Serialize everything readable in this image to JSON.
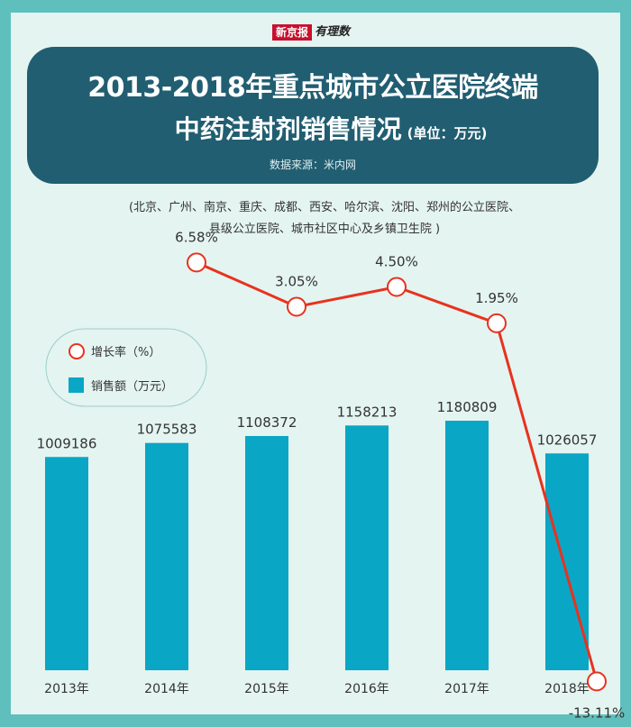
{
  "brand": {
    "left": "新京报",
    "right": "有理数"
  },
  "header": {
    "title_line1": "2013-2018年重点城市公立医院终端",
    "title_line2": "中药注射剂销售情况",
    "unit": "(单位：万元)",
    "source": "数据来源：米内网"
  },
  "subtitle": {
    "line1": "(北京、广州、南京、重庆、成都、西安、哈尔滨、沈阳、郑州的公立医院、",
    "line2": "县级公立医院、城市社区中心及乡镇卫生院 )"
  },
  "colors": {
    "background": "#5fbfbd",
    "panel": "#e4f4f0",
    "title_box": "#215e71",
    "bar": "#0aa6c6",
    "line": "#e8321e",
    "marker_fill": "#ffffff"
  },
  "chart_data": {
    "type": "bar",
    "categories": [
      "2013年",
      "2014年",
      "2015年",
      "2016年",
      "2017年",
      "2018年"
    ],
    "series": [
      {
        "name": "销售额（万元）",
        "type": "bar",
        "values": [
          1009186,
          1075583,
          1108372,
          1158213,
          1180809,
          1026057
        ],
        "labels": [
          "1009186",
          "1075583",
          "1108372",
          "1158213",
          "1180809",
          "1026057"
        ]
      },
      {
        "name": "增长率（%）",
        "type": "line",
        "values": [
          null,
          6.58,
          3.05,
          4.5,
          1.95,
          -13.11
        ],
        "labels": [
          "",
          "6.58%",
          "3.05%",
          "4.50%",
          "1.95%",
          "-13.11%"
        ]
      }
    ],
    "legend": {
      "position": "left",
      "items": [
        {
          "label": "增长率（%）",
          "marker": "circle"
        },
        {
          "label": "销售额（万元）",
          "marker": "square"
        }
      ]
    },
    "grid": false
  }
}
